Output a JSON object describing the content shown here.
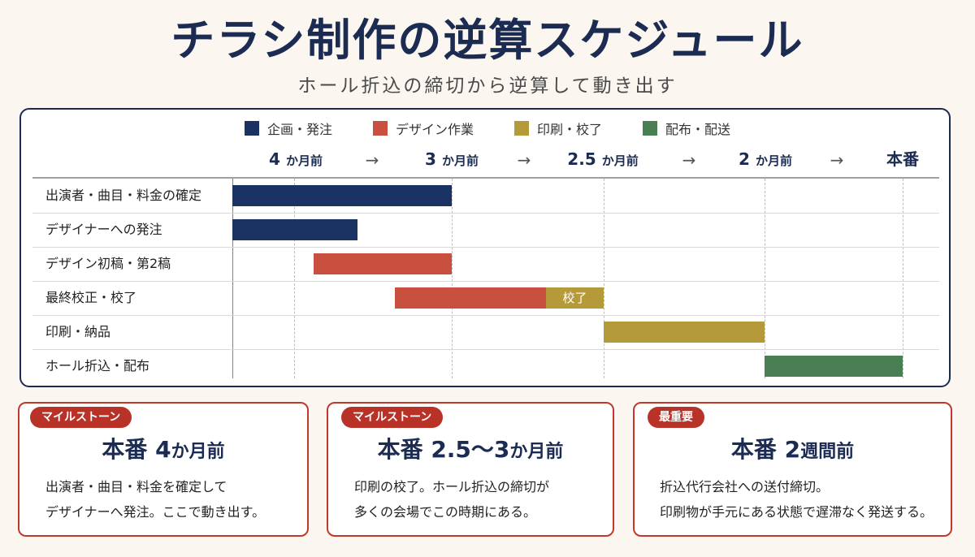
{
  "title": "チラシ制作の逆算スケジュール",
  "subtitle": "ホール折込の締切から逆算して動き出す",
  "colors": {
    "navy": "#1b3363",
    "red": "#c9503f",
    "gold": "#b59a3a",
    "green": "#4a7f54"
  },
  "legend": [
    {
      "label": "企画・発注",
      "color": "#1b3363"
    },
    {
      "label": "デザイン作業",
      "color": "#c9503f"
    },
    {
      "label": "印刷・校了",
      "color": "#b59a3a"
    },
    {
      "label": "配布・配送",
      "color": "#4a7f54"
    }
  ],
  "timeline": {
    "headers": [
      {
        "num": "4",
        "unit": "か月前"
      },
      {
        "num": "3",
        "unit": "か月前"
      },
      {
        "num": "2.5",
        "unit": "か月前"
      },
      {
        "num": "2",
        "unit": "か月前"
      },
      {
        "num": "本番",
        "unit": ""
      }
    ],
    "arrow": "→"
  },
  "tasks": [
    {
      "label": "出演者・曲目・料金の確定",
      "segments": [
        {
          "start": 4,
          "end": 3,
          "color": "#1b3363",
          "text": ""
        }
      ]
    },
    {
      "label": "デザイナーへの発注",
      "segments": [
        {
          "start": 4,
          "end": 3.43,
          "color": "#1b3363",
          "text": ""
        }
      ]
    },
    {
      "label": "デザイン初稿・第2稿",
      "segments": [
        {
          "start": 3.63,
          "end": 3,
          "color": "#c9503f",
          "text": ""
        }
      ]
    },
    {
      "label": "最終校正・校了",
      "segments": [
        {
          "start": 3.26,
          "end": 2.69,
          "color": "#c9503f",
          "text": ""
        },
        {
          "start": 2.69,
          "end": 2.5,
          "color": "#b59a3a",
          "text": "校了"
        }
      ]
    },
    {
      "label": "印刷・納品",
      "segments": [
        {
          "start": 2.5,
          "end": 2,
          "color": "#b59a3a",
          "text": ""
        }
      ]
    },
    {
      "label": "ホール折込・配布",
      "segments": [
        {
          "start": 2,
          "end": 1.5,
          "color": "#4a7f54",
          "text": ""
        }
      ]
    }
  ],
  "cards": [
    {
      "badge": "マイルストーン",
      "head_prefix": "本番 ",
      "head_num": "4",
      "head_unit": "か月前",
      "lines": [
        "出演者・曲目・料金を確定して",
        "デザイナーへ発注。ここで動き出す。"
      ]
    },
    {
      "badge": "マイルストーン",
      "head_prefix": "本番 ",
      "head_num": "2.5〜3",
      "head_unit": "か月前",
      "lines": [
        "印刷の校了。ホール折込の締切が",
        "多くの会場でこの時期にある。"
      ]
    },
    {
      "badge": "最重要",
      "head_prefix": "本番 ",
      "head_num": "2",
      "head_unit": "週間前",
      "lines": [
        "折込代行会社への送付締切。",
        "印刷物が手元にある状態で遅滞なく発送する。"
      ]
    }
  ]
}
